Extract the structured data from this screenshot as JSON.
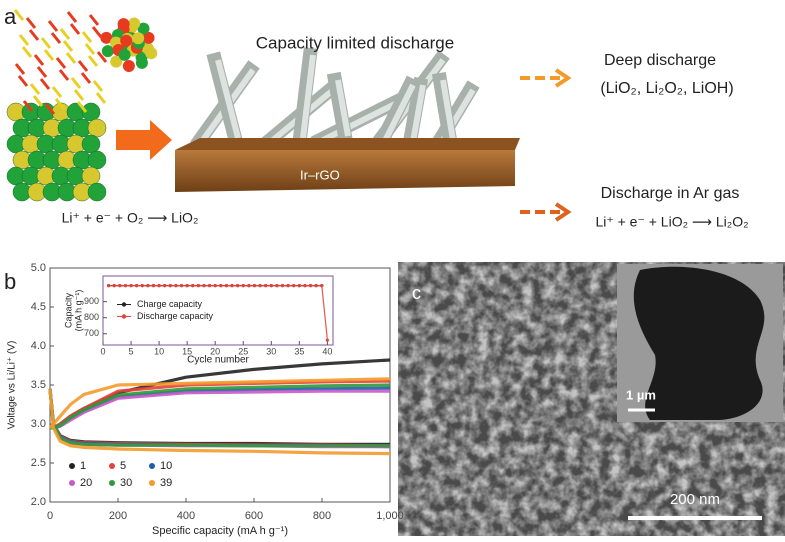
{
  "panel_a": {
    "label": "a",
    "title": "Capacity limited discharge",
    "substrate": "Ir–rGO",
    "reaction": "Li⁺ + e⁻ + O₂ ⟶ LiO₂",
    "deep": {
      "title": "Deep discharge",
      "products": "(LiO₂, Li₂O₂, LiOH)"
    },
    "argon": {
      "title": "Discharge in Ar gas",
      "reaction": "Li⁺ + e⁻ + LiO₂ ⟶ Li₂O₂"
    }
  },
  "panel_b": {
    "label": "b"
  },
  "chart_data": [
    {
      "type": "line",
      "xlabel": "Specific capacity (mA h g⁻¹)",
      "ylabel": "Voltage vs Li/Li⁺ (V)",
      "xlim": [
        0,
        1000
      ],
      "ylim": [
        2.0,
        5.0
      ],
      "xticks": [
        0,
        200,
        400,
        600,
        800,
        {
          "value": 1000,
          "label": "1,000"
        }
      ],
      "yticks": [
        {
          "value": 2.0,
          "label": "2.0"
        },
        {
          "value": 2.5,
          "label": "2.5"
        },
        {
          "value": 3.0,
          "label": "3.0"
        },
        {
          "value": 3.5,
          "label": "3.5"
        },
        {
          "value": 4.0,
          "label": "4.0"
        },
        {
          "value": 4.5,
          "label": "4.5"
        },
        {
          "value": 5.0,
          "label": "5.0"
        }
      ],
      "legend": "lower left",
      "x": [
        0,
        10,
        30,
        60,
        100,
        200,
        400,
        600,
        800,
        1000
      ],
      "series": [
        {
          "name": "1",
          "color": "#222222",
          "charge": [
            2.95,
            2.95,
            3.0,
            3.1,
            3.2,
            3.4,
            3.6,
            3.7,
            3.77,
            3.82
          ],
          "discharge": [
            3.45,
            3.0,
            2.85,
            2.79,
            2.77,
            2.76,
            2.75,
            2.75,
            2.74,
            2.74
          ]
        },
        {
          "name": "5",
          "color": "#e8413a",
          "charge": [
            2.95,
            2.95,
            3.0,
            3.1,
            3.2,
            3.42,
            3.5,
            3.52,
            3.54,
            3.55
          ],
          "discharge": [
            3.45,
            3.0,
            2.84,
            2.78,
            2.76,
            2.75,
            2.74,
            2.73,
            2.73,
            2.72
          ]
        },
        {
          "name": "10",
          "color": "#1f5fa8",
          "charge": [
            2.95,
            2.95,
            2.98,
            3.07,
            3.17,
            3.35,
            3.42,
            3.44,
            3.45,
            3.46
          ],
          "discharge": [
            3.45,
            3.0,
            2.83,
            2.77,
            2.75,
            2.74,
            2.73,
            2.72,
            2.72,
            2.71
          ]
        },
        {
          "name": "20",
          "color": "#c55bc9",
          "charge": [
            2.95,
            2.95,
            2.97,
            3.05,
            3.15,
            3.33,
            3.4,
            3.41,
            3.42,
            3.42
          ],
          "discharge": [
            3.45,
            3.0,
            2.82,
            2.76,
            2.74,
            2.73,
            2.72,
            2.72,
            2.71,
            2.71
          ]
        },
        {
          "name": "30",
          "color": "#2e9a3a",
          "charge": [
            2.95,
            2.95,
            2.98,
            3.08,
            3.18,
            3.37,
            3.45,
            3.47,
            3.49,
            3.5
          ],
          "discharge": [
            3.45,
            3.0,
            2.82,
            2.76,
            2.74,
            2.73,
            2.73,
            2.72,
            2.72,
            2.72
          ]
        },
        {
          "name": "39",
          "color": "#f39a2b",
          "charge": [
            2.95,
            3.0,
            3.1,
            3.25,
            3.38,
            3.5,
            3.52,
            3.54,
            3.56,
            3.58
          ],
          "discharge": [
            3.45,
            2.95,
            2.78,
            2.72,
            2.7,
            2.68,
            2.66,
            2.65,
            2.63,
            2.62
          ]
        }
      ]
    },
    {
      "type": "line",
      "xlabel": "Cycle number",
      "ylabel": [
        "Capacity",
        "(mA h g⁻¹)"
      ],
      "xlim": [
        0,
        41
      ],
      "ylim": [
        630,
        1060
      ],
      "xticks": [
        0,
        5,
        10,
        15,
        20,
        25,
        30,
        35,
        40
      ],
      "yticks": [
        700,
        800,
        900
      ],
      "legend": "center left",
      "x": [
        1,
        2,
        3,
        4,
        5,
        6,
        7,
        8,
        9,
        10,
        11,
        12,
        13,
        14,
        15,
        16,
        17,
        18,
        19,
        20,
        21,
        22,
        23,
        24,
        25,
        26,
        27,
        28,
        29,
        30,
        31,
        32,
        33,
        34,
        35,
        36,
        37,
        38,
        39,
        40
      ],
      "series": [
        {
          "name": "Charge capacity",
          "color": "#222222",
          "values": [
            1000,
            1000,
            1000,
            1000,
            1000,
            1000,
            1000,
            1000,
            1000,
            1000,
            1000,
            1000,
            1000,
            1000,
            1000,
            1000,
            1000,
            1000,
            1000,
            1000,
            1000,
            1000,
            1000,
            1000,
            1000,
            1000,
            1000,
            1000,
            1000,
            1000,
            1000,
            1000,
            1000,
            1000,
            1000,
            1000,
            1000,
            1000,
            1000,
            null
          ]
        },
        {
          "name": "Discharge capacity",
          "color": "#e8413a",
          "values": [
            1000,
            1000,
            1000,
            1000,
            1000,
            1000,
            1000,
            1000,
            1000,
            1000,
            1000,
            1000,
            1000,
            1000,
            1000,
            1000,
            1000,
            1000,
            1000,
            1000,
            1000,
            1000,
            1000,
            1000,
            1000,
            1000,
            1000,
            1000,
            1000,
            1000,
            1000,
            1000,
            1000,
            1000,
            1000,
            1000,
            1000,
            1000,
            1000,
            660
          ]
        }
      ]
    }
  ],
  "panel_c": {
    "label": "c",
    "inset_scale": "1 µm",
    "scale": "200 nm"
  }
}
